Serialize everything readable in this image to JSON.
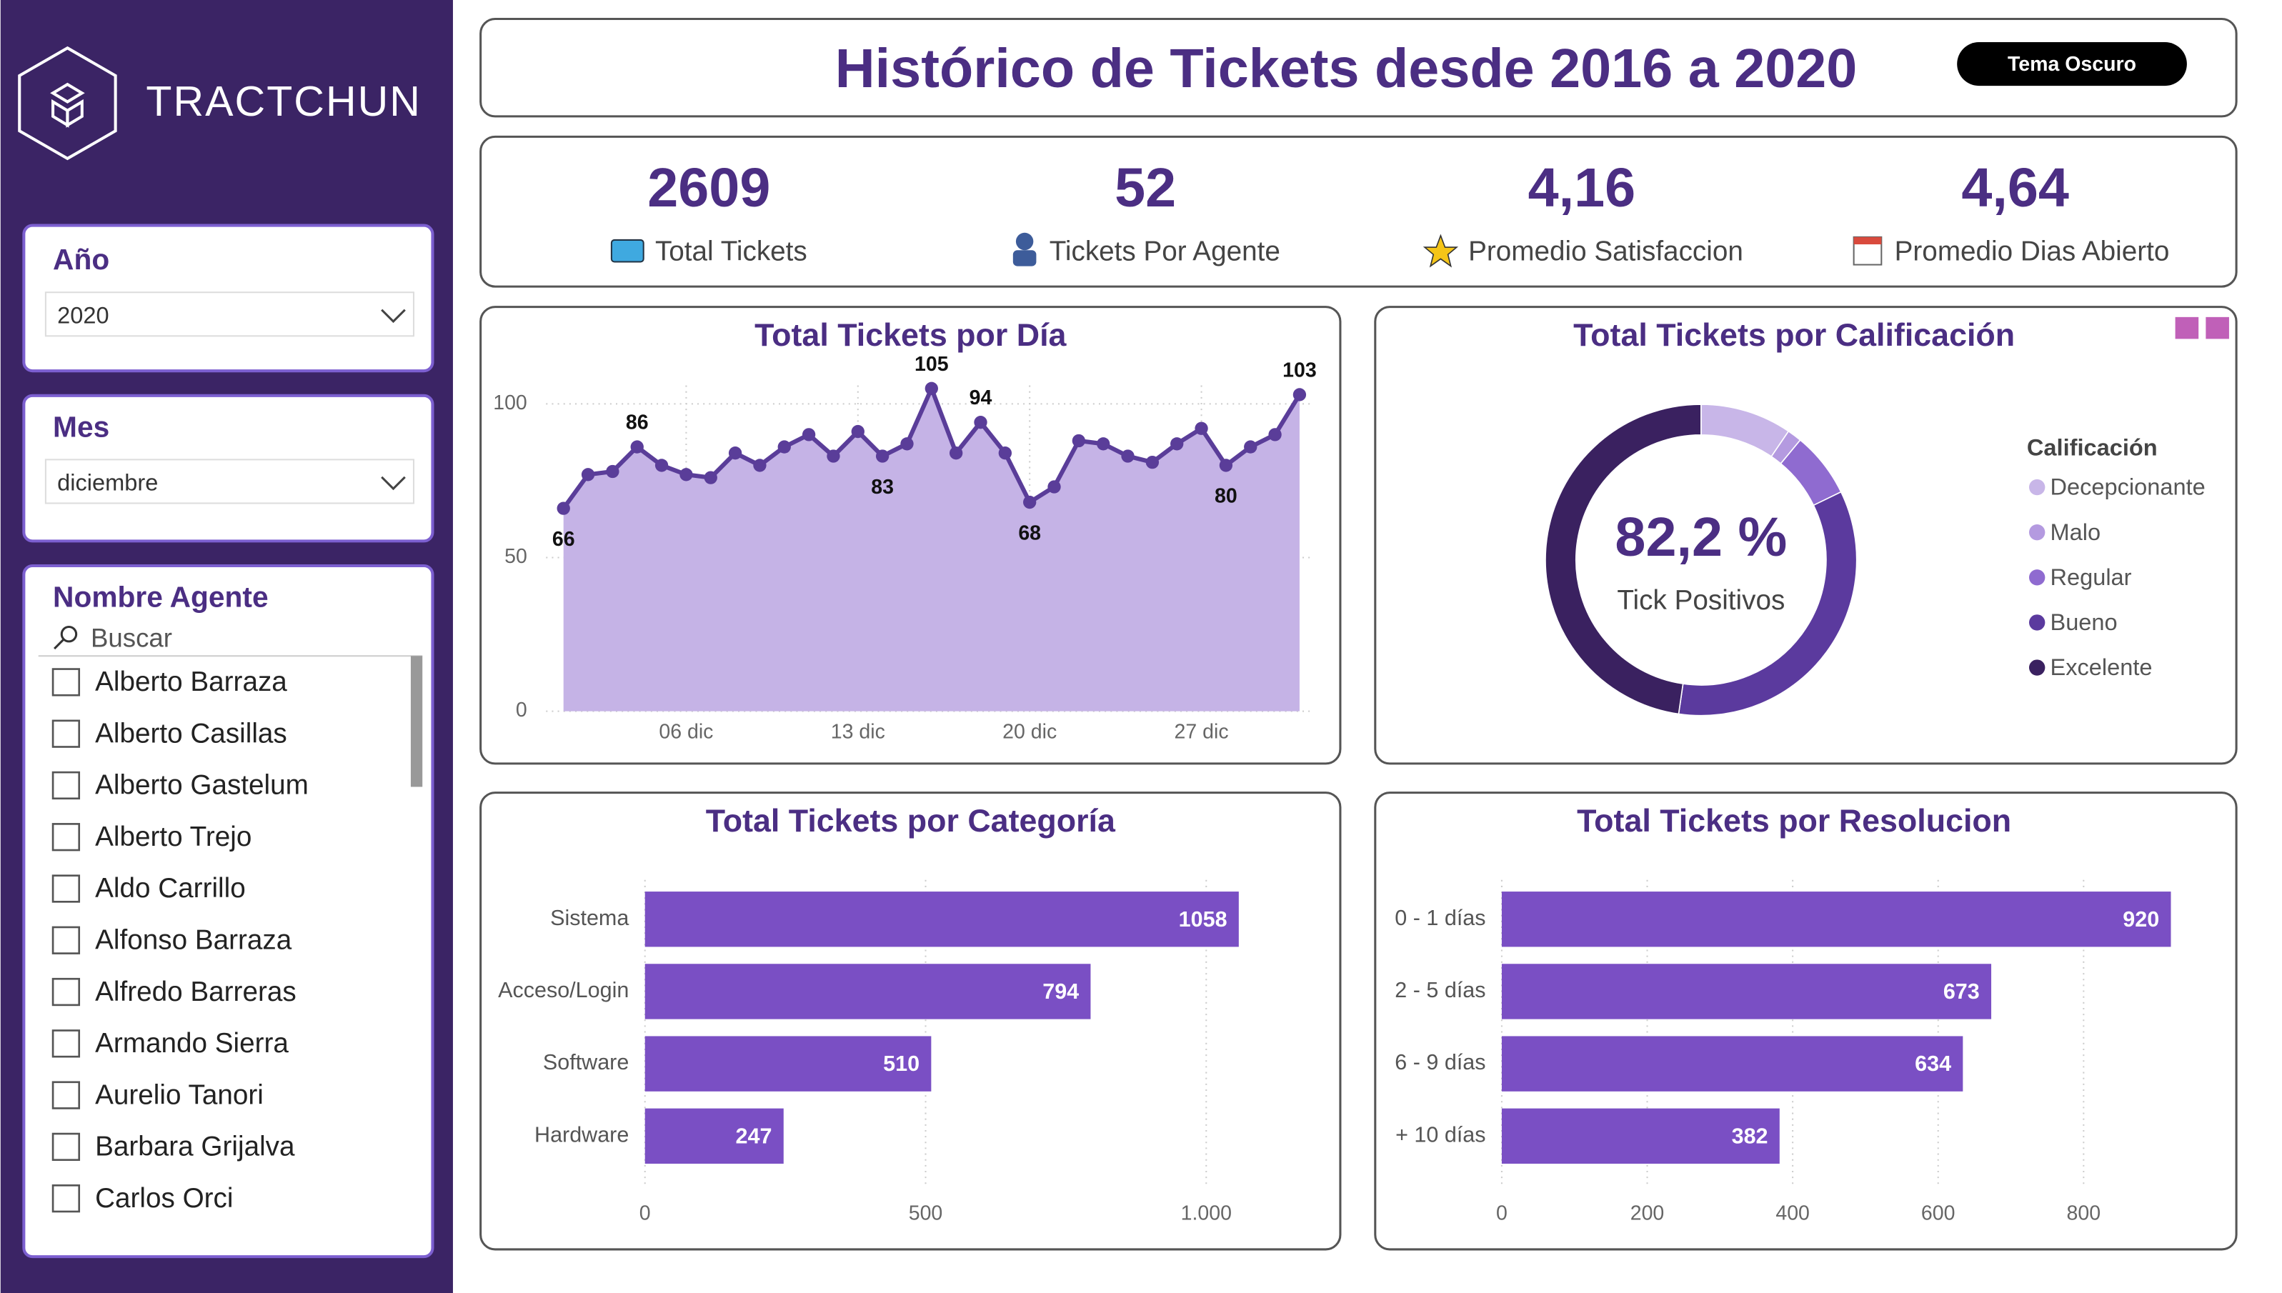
{
  "sidebar": {
    "brand": "TRACTCHUN",
    "filters": [
      {
        "label": "Año",
        "value": "2020"
      },
      {
        "label": "Mes",
        "value": "diciembre"
      }
    ],
    "agent_filter": {
      "label": "Nombre Agente",
      "search": "Buscar",
      "agents": [
        "Alberto Barraza",
        "Alberto Casillas",
        "Alberto Gastelum",
        "Alberto Trejo",
        "Aldo Carrillo",
        "Alfonso Barraza",
        "Alfredo Barreras",
        "Armando Sierra",
        "Aurelio Tanori",
        "Barbara Grijalva",
        "Carlos Orci"
      ]
    }
  },
  "header": {
    "title": "Histórico de Tickets desde 2016 a 2020",
    "theme_button": "Tema Oscuro"
  },
  "kpis": [
    {
      "value": "2609",
      "label": "Total Tickets"
    },
    {
      "value": "52",
      "label": "Tickets Por Agente"
    },
    {
      "value": "4,16",
      "label": "Promedio Satisfaccion"
    },
    {
      "value": "4,64",
      "label": "Promedio Dias Abierto"
    }
  ],
  "chart_data": [
    {
      "type": "area",
      "title": "Total Tickets por Día",
      "color": "#5a3d99",
      "fill": "#c5b3e6",
      "x": [
        1,
        2,
        3,
        4,
        5,
        6,
        7,
        8,
        9,
        10,
        11,
        12,
        13,
        14,
        15,
        16,
        17,
        18,
        19,
        20,
        21,
        22,
        23,
        24,
        25,
        26,
        27,
        28,
        29,
        30,
        31
      ],
      "values": [
        66,
        77,
        78,
        86,
        80,
        77,
        76,
        84,
        80,
        86,
        90,
        83,
        91,
        83,
        87,
        105,
        84,
        94,
        84,
        68,
        73,
        88,
        87,
        83,
        81,
        87,
        92,
        80,
        86,
        90,
        103
      ],
      "value_labels": [
        "66",
        null,
        null,
        "86",
        null,
        null,
        null,
        null,
        null,
        null,
        null,
        null,
        null,
        "83",
        null,
        "105",
        null,
        "94",
        null,
        "68",
        null,
        null,
        null,
        null,
        null,
        null,
        null,
        "80",
        null,
        null,
        "103"
      ],
      "xlim": [
        1,
        31
      ],
      "xticks": [
        {
          "value": 6,
          "label": "06 dic"
        },
        {
          "value": 13,
          "label": "13 dic"
        },
        {
          "value": 20,
          "label": "20 dic"
        },
        {
          "value": 27,
          "label": "27 dic"
        }
      ],
      "ylim": [
        0,
        106
      ],
      "yticks": [
        0,
        50,
        100
      ],
      "grid": true
    },
    {
      "type": "donut",
      "title": "Total Tickets por Calificación",
      "legend_title": "Calificación",
      "center_value": "82,2 %",
      "center_label": "Tick Positivos",
      "categories": [
        "Decepcionante",
        "Malo",
        "Regular",
        "Bueno",
        "Excelente"
      ],
      "values": [
        9.5,
        1.5,
        6.8,
        34.5,
        47.7
      ],
      "colors": [
        "#c8b6e8",
        "#b49ae0",
        "#8f6bd0",
        "#5b3a9e",
        "#3a2160"
      ]
    },
    {
      "type": "bar",
      "title": "Total Tickets por Categoría",
      "color": "#7a4fc4",
      "categories": [
        "Sistema",
        "Acceso/Login",
        "Software",
        "Hardware"
      ],
      "values": [
        1058,
        794,
        510,
        247
      ],
      "xlim": [
        0,
        1200
      ],
      "xticks": [
        0,
        500,
        {
          "value": 1000,
          "label": "1.000"
        }
      ],
      "grid": true
    },
    {
      "type": "bar",
      "title": "Total Tickets por Resolucion",
      "color": "#7a4fc4",
      "categories": [
        "0 - 1 días",
        "2 - 5 días",
        "6 - 9 días",
        "+ 10 días"
      ],
      "values": [
        920,
        673,
        634,
        382
      ],
      "xlim": [
        0,
        960
      ],
      "xticks": [
        0,
        200,
        400,
        600,
        800
      ],
      "grid": true
    }
  ]
}
